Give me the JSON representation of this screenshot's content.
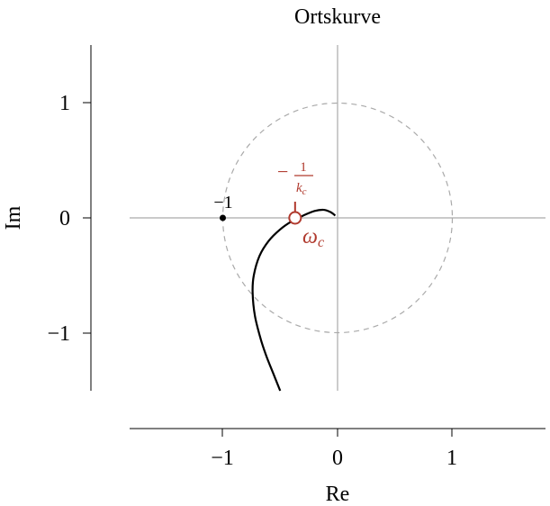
{
  "chart_data": {
    "type": "line",
    "title": "Ortskurve",
    "xlabel": "Re",
    "ylabel": "Im",
    "xlim": [
      -1.8,
      1.8
    ],
    "ylim": [
      -1.5,
      1.5
    ],
    "x_ticks": [
      -1,
      0,
      1
    ],
    "x_tick_labels": [
      "−1",
      "0",
      "1"
    ],
    "y_ticks": [
      -1,
      0,
      1
    ],
    "y_tick_labels": [
      "−1",
      "0",
      "1"
    ],
    "grid": false,
    "colors": {
      "curve": "#000000",
      "accent": "#b03a2e",
      "zero_lines": "#aaaaaa",
      "unit_circle": "#aaaaaa"
    },
    "series": [
      {
        "x": [
          -0.5,
          -0.56,
          -0.62,
          -0.67,
          -0.72,
          -0.74,
          -0.73,
          -0.68,
          -0.6,
          -0.5,
          -0.4,
          -0.3,
          -0.2,
          -0.12,
          -0.06,
          -0.02
        ],
        "y": [
          -1.5,
          -1.35,
          -1.2,
          -1.05,
          -0.85,
          -0.65,
          -0.5,
          -0.33,
          -0.2,
          -0.1,
          -0.03,
          0.02,
          0.06,
          0.07,
          0.05,
          0.02
        ]
      }
    ],
    "unit_circle": {
      "center": [
        0,
        0
      ],
      "radius": 1,
      "style": "dashed"
    },
    "points": [
      {
        "x": -1,
        "y": 0,
        "label": "−1",
        "marker": "filled-dot"
      },
      {
        "x": -0.37,
        "y": 0,
        "label_top": "−1/k_c",
        "label_bottom": "ω_c",
        "marker": "open-circle"
      }
    ]
  },
  "annotations": {
    "minus_one": "−1",
    "crit_minus": "−",
    "crit_num": "1",
    "crit_den_k": "k",
    "crit_den_sub": "c",
    "omega": "ω",
    "omega_sub": "c"
  }
}
